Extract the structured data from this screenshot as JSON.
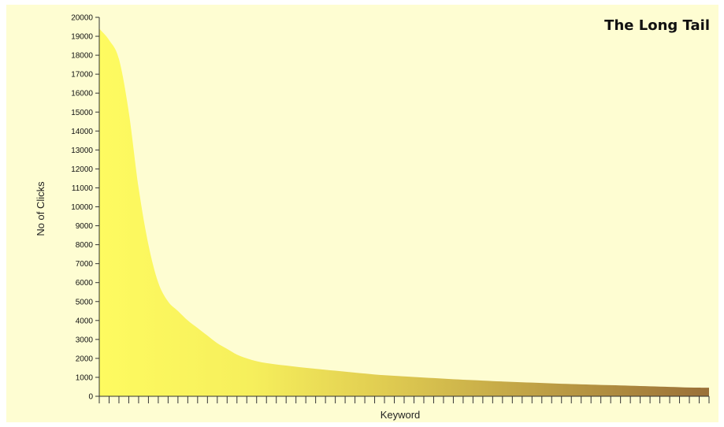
{
  "chart_data": {
    "type": "area",
    "title": "The Long Tail",
    "xlabel": "Keyword",
    "ylabel": "No of Clicks",
    "ylim": [
      0,
      20000
    ],
    "yticks": [
      0,
      1000,
      2000,
      3000,
      4000,
      5000,
      6000,
      7000,
      8000,
      9000,
      10000,
      11000,
      12000,
      13000,
      14000,
      15000,
      16000,
      17000,
      18000,
      19000,
      20000
    ],
    "grid": false,
    "legend": "none",
    "x_tick_count": 63,
    "x": [
      0,
      1,
      2,
      3,
      4,
      5,
      6,
      7,
      8,
      9,
      10,
      11,
      12,
      13,
      14,
      15,
      16,
      17,
      18,
      19,
      20,
      21,
      22,
      23,
      24,
      25,
      26,
      27,
      28,
      29,
      30,
      31,
      32,
      33,
      34,
      35,
      36,
      37,
      38,
      39,
      40,
      41,
      42,
      43,
      44,
      45,
      46,
      47,
      48,
      49,
      50,
      51,
      52,
      53,
      54,
      55,
      56,
      57,
      58,
      59,
      60,
      61,
      62
    ],
    "values": [
      19400,
      18800,
      17800,
      15000,
      11000,
      8000,
      6000,
      5000,
      4500,
      4000,
      3600,
      3200,
      2800,
      2500,
      2200,
      2000,
      1850,
      1750,
      1680,
      1620,
      1560,
      1500,
      1450,
      1400,
      1350,
      1300,
      1250,
      1200,
      1150,
      1110,
      1080,
      1050,
      1020,
      990,
      960,
      930,
      900,
      875,
      850,
      825,
      800,
      780,
      760,
      740,
      720,
      700,
      680,
      660,
      645,
      630,
      615,
      600,
      585,
      570,
      555,
      540,
      525,
      510,
      495,
      480,
      465,
      455,
      450
    ],
    "colors": {
      "background": "#fefdd2",
      "area_start": "#fefb60",
      "area_mid": "#f6ef5c",
      "area_end": "#9a7038",
      "axis": "#333333"
    }
  }
}
